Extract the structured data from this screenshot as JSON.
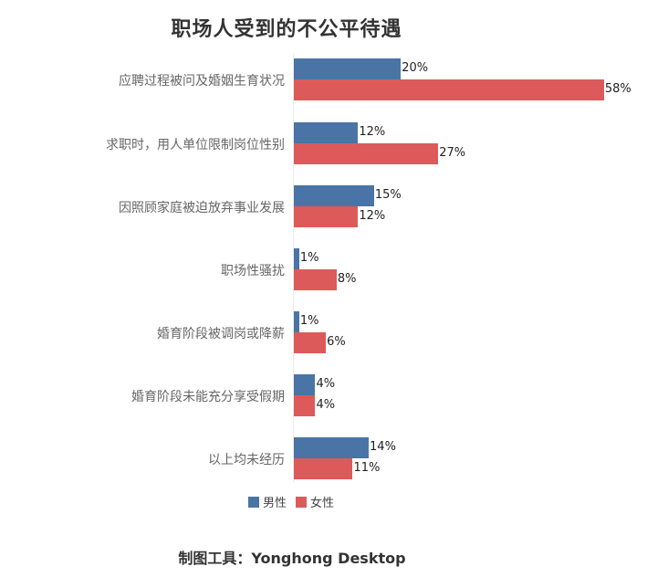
{
  "chart_data": {
    "type": "bar",
    "orientation": "horizontal",
    "title": "职场人受到的不公平待遇",
    "categories": [
      "应聘过程被问及婚姻生育状况",
      "求职时，用人单位限制岗位性别",
      "因照顾家庭被迫放弃事业发展",
      "职场性骚扰",
      "婚育阶段被调岗或降薪",
      "婚育阶段未能充分享受假期",
      "以上均未经历"
    ],
    "series": [
      {
        "name": "男性",
        "color": "#4a74a5",
        "values": [
          20,
          12,
          15,
          1,
          1,
          4,
          14
        ]
      },
      {
        "name": "女性",
        "color": "#dd5a5a",
        "values": [
          58,
          27,
          12,
          8,
          6,
          4,
          11
        ]
      }
    ],
    "value_labels": [
      [
        "20%",
        "58%"
      ],
      [
        "12%",
        "27%"
      ],
      [
        "15%",
        "12%"
      ],
      [
        "1%",
        "8%"
      ],
      [
        "1%",
        "6%"
      ],
      [
        "4%",
        "4%"
      ],
      [
        "14%",
        "11%"
      ]
    ],
    "xlabel": "",
    "ylabel": "",
    "unit": "%",
    "grid": false,
    "legend_position": "bottom"
  },
  "legend": {
    "male": "男性",
    "female": "女性"
  },
  "footer": "制图工具：Yonghong Desktop"
}
